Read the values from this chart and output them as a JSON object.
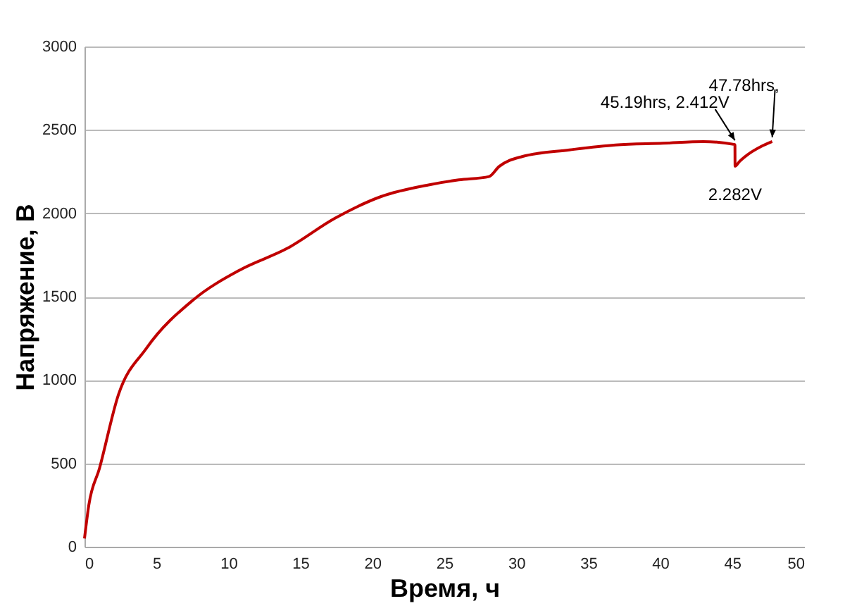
{
  "chart_data": {
    "type": "line",
    "xlabel": "Время, ч",
    "ylabel": "Напряжение, В",
    "x": [
      0,
      0.3,
      1.04,
      2.35,
      4.3,
      7.55,
      10.8,
      14.1,
      17.4,
      20.6,
      23.9,
      26,
      28.1,
      28.8,
      30.4,
      33.7,
      36.9,
      40.2,
      43,
      45.19,
      45.2,
      45.5,
      46.05,
      47,
      47.78
    ],
    "series": [
      {
        "color": "#c00000",
        "values": [
          50,
          250,
          470,
          910,
          1190,
          1480,
          1660,
          1790,
          1970,
          2100,
          2170,
          2200,
          2220,
          2280,
          2340,
          2380,
          2410,
          2420,
          2430,
          2412,
          2282,
          2310,
          2350,
          2400,
          2430
        ]
      }
    ],
    "xlim": [
      0,
      50
    ],
    "xticks": [
      0,
      5,
      10,
      15,
      20,
      25,
      30,
      35,
      40,
      45,
      50
    ],
    "ylim": [
      0,
      3000
    ],
    "yticks": [
      0,
      500,
      1000,
      1500,
      2000,
      2500,
      3000
    ],
    "grid": "y",
    "annotations": [
      {
        "text": "45.19hrs, 2.412V",
        "x": 45.19,
        "y": 2412
      },
      {
        "text": "2.282V",
        "x": 45.2,
        "y": 2282
      },
      {
        "text": "47.78hrs,",
        "x": 47.78,
        "y": 2430
      }
    ]
  }
}
